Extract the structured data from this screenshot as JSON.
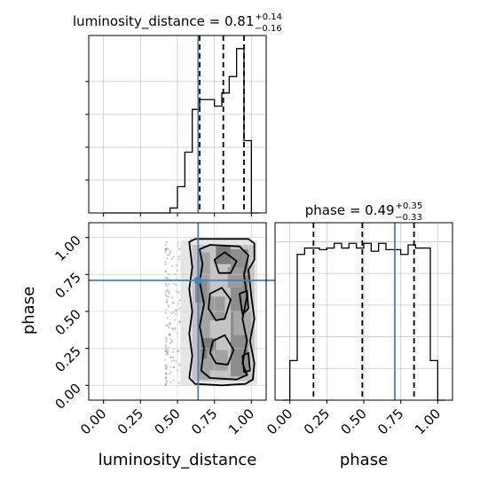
{
  "chart_data": {
    "type": "corner",
    "parameters": [
      "luminosity_distance",
      "phase"
    ],
    "titles": [
      {
        "param": "luminosity_distance",
        "median": "0.81",
        "plus": "+0.14",
        "minus": "−0.16"
      },
      {
        "param": "phase",
        "median": "0.49",
        "plus": "+0.35",
        "minus": "−0.33"
      }
    ],
    "xlabels": [
      "luminosity_distance",
      "phase"
    ],
    "ylabel": "phase",
    "ticks": [
      0.0,
      0.25,
      0.5,
      0.75,
      1.0
    ],
    "tick_labels": [
      "0.00",
      "0.25",
      "0.50",
      "0.75",
      "1.00"
    ],
    "truth": {
      "luminosity_distance": 0.64,
      "phase": 0.71,
      "color": "#4682b4"
    },
    "hist_luminosity_distance": {
      "edges": [
        0.0,
        0.05,
        0.1,
        0.15,
        0.2,
        0.25,
        0.3,
        0.35,
        0.4,
        0.45,
        0.5,
        0.55,
        0.6,
        0.65,
        0.7,
        0.75,
        0.8,
        0.85,
        0.9,
        0.95,
        1.0,
        1.05
      ],
      "counts": [
        0,
        0,
        0,
        0,
        0,
        0,
        0,
        0,
        0,
        0.03,
        0.16,
        0.37,
        0.63,
        0.69,
        0.69,
        0.65,
        0.73,
        0.83,
        1.0,
        0.44,
        0
      ],
      "quantiles": [
        0.65,
        0.81,
        0.95
      ],
      "xlim": [
        -0.1,
        1.1
      ]
    },
    "hist_phase": {
      "edges": [
        -0.05,
        0.0,
        0.05,
        0.1,
        0.15,
        0.2,
        0.25,
        0.3,
        0.35,
        0.4,
        0.45,
        0.5,
        0.55,
        0.6,
        0.65,
        0.7,
        0.75,
        0.8,
        0.85,
        0.9,
        0.95,
        1.0,
        1.05
      ],
      "counts": [
        0,
        0.25,
        0.92,
        0.96,
        0.96,
        0.95,
        0.96,
        0.99,
        0.96,
        0.99,
        0.96,
        0.99,
        0.94,
        0.99,
        0.95,
        0.95,
        0.92,
        0.98,
        0.96,
        0.96,
        0.25,
        0
      ],
      "quantiles": [
        0.16,
        0.49,
        0.84
      ],
      "xlim": [
        -0.1,
        1.1
      ]
    },
    "joint": {
      "xlim": [
        -0.1,
        1.1
      ],
      "ylim": [
        -0.1,
        1.1
      ],
      "x_support": [
        0.45,
        1.05
      ],
      "y_support": [
        0.0,
        1.0
      ]
    },
    "grid": true
  }
}
